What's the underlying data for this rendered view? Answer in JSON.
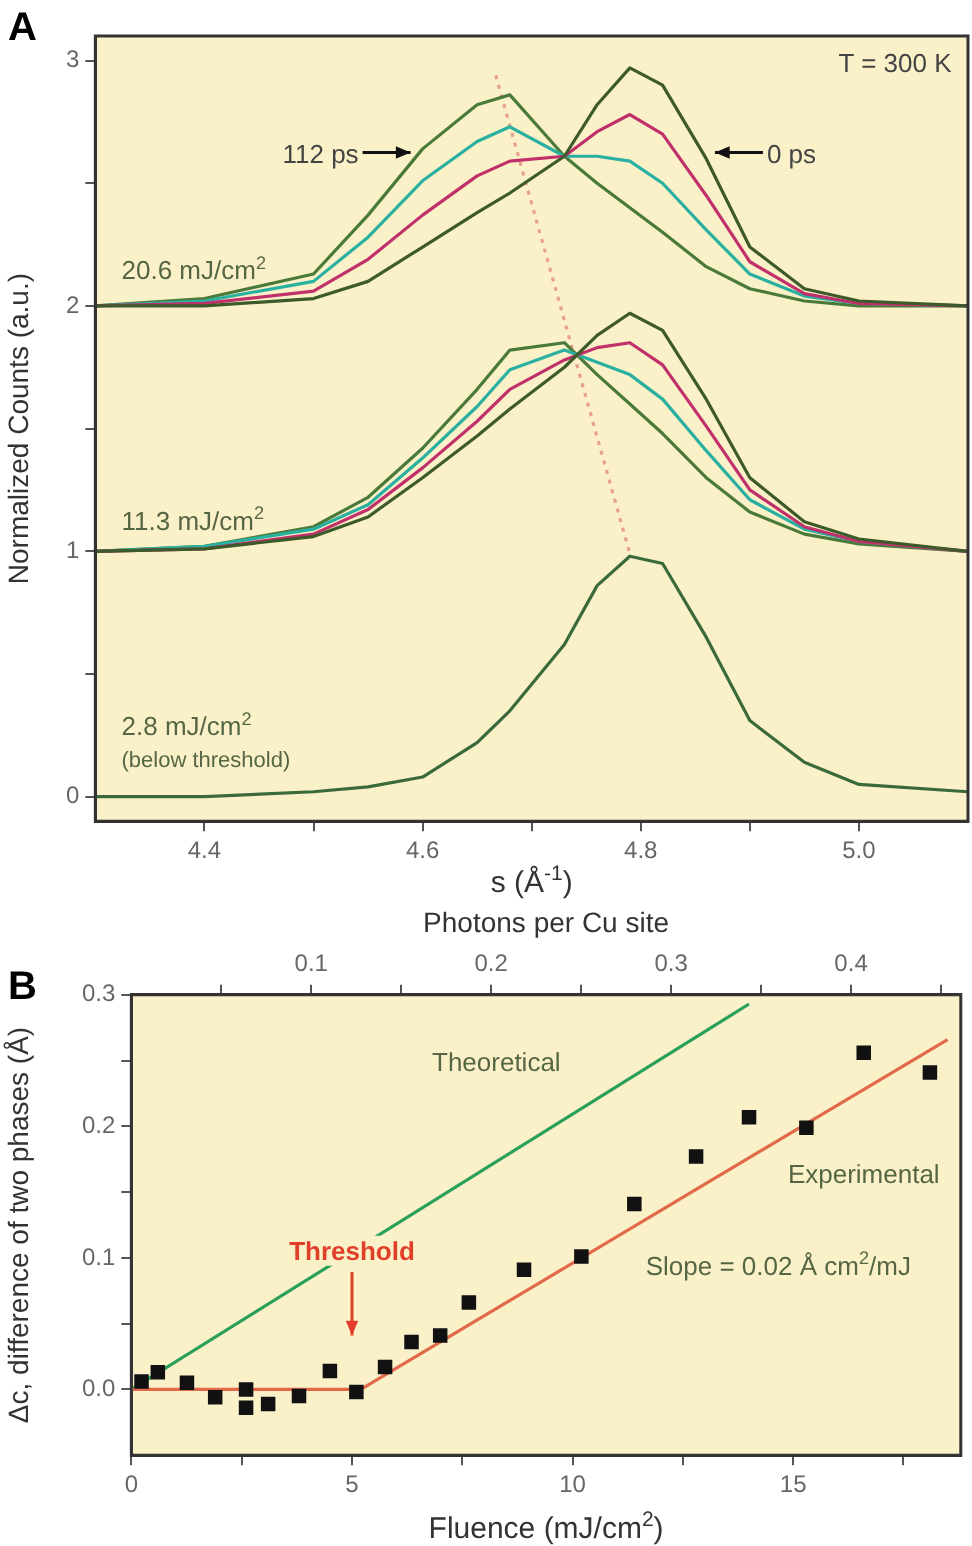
{
  "chart_data": [
    {
      "type": "line",
      "xlabel": "s (Å$^{-1}$)",
      "ylabel": "Normalized Counts (a.u.)",
      "xlim": [
        4.3,
        5.1
      ],
      "ylim": [
        -0.1,
        3.1
      ],
      "xticks": [
        4.4,
        {
          "value": 4.5,
          "label": null
        },
        4.6,
        {
          "value": 4.7,
          "label": null
        },
        4.8,
        {
          "value": 4.9,
          "label": null
        },
        {
          "value": 5,
          "label": "5.0"
        }
      ],
      "yticks": [
        0,
        {
          "value": 0.5,
          "label": null
        },
        1,
        {
          "value": 1.5,
          "label": null
        },
        2,
        {
          "value": 2.5,
          "label": null
        },
        3
      ],
      "x": [
        4.3,
        4.4,
        4.5,
        4.55,
        4.6,
        4.65,
        4.68,
        4.73,
        4.76,
        4.79,
        4.82,
        4.86,
        4.9,
        4.95,
        5.0,
        5.1
      ],
      "series": [
        {
          "color": "#3d5a2a",
          "values": [
            2.0,
            2.0,
            2.03,
            2.1,
            2.24,
            2.38,
            2.46,
            2.61,
            2.82,
            2.97,
            2.9,
            2.6,
            2.24,
            2.07,
            2.02,
            2.0
          ]
        },
        {
          "color": "#c0306a",
          "values": [
            2.0,
            2.01,
            2.06,
            2.19,
            2.37,
            2.53,
            2.59,
            2.61,
            2.71,
            2.78,
            2.7,
            2.45,
            2.18,
            2.05,
            2.01,
            2.0
          ]
        },
        {
          "color": "#2ab0a0",
          "values": [
            2.0,
            2.02,
            2.1,
            2.28,
            2.51,
            2.67,
            2.73,
            2.61,
            2.61,
            2.59,
            2.5,
            2.31,
            2.13,
            2.04,
            2.01,
            2.0
          ]
        },
        {
          "color": "#4a7a3a",
          "values": [
            2.0,
            2.03,
            2.13,
            2.37,
            2.64,
            2.82,
            2.86,
            2.61,
            2.5,
            2.4,
            2.3,
            2.16,
            2.07,
            2.02,
            2.0,
            2.0
          ]
        },
        {
          "color": "#3d5a2a",
          "values": [
            1.0,
            1.01,
            1.06,
            1.14,
            1.3,
            1.47,
            1.58,
            1.75,
            1.88,
            1.97,
            1.9,
            1.62,
            1.3,
            1.12,
            1.05,
            1.0
          ]
        },
        {
          "color": "#c0306a",
          "values": [
            1.0,
            1.01,
            1.07,
            1.17,
            1.34,
            1.53,
            1.66,
            1.78,
            1.83,
            1.85,
            1.76,
            1.51,
            1.25,
            1.1,
            1.04,
            1.0
          ]
        },
        {
          "color": "#2ab0a0",
          "values": [
            1.0,
            1.02,
            1.09,
            1.19,
            1.38,
            1.59,
            1.74,
            1.82,
            1.77,
            1.72,
            1.62,
            1.41,
            1.21,
            1.09,
            1.04,
            1.0
          ]
        },
        {
          "color": "#4a7a3a",
          "values": [
            1.0,
            1.02,
            1.1,
            1.22,
            1.42,
            1.66,
            1.82,
            1.85,
            1.72,
            1.6,
            1.48,
            1.3,
            1.16,
            1.07,
            1.03,
            1.0
          ]
        },
        {
          "color": "#3a6a3a",
          "values": [
            0.0,
            0.0,
            0.02,
            0.04,
            0.08,
            0.22,
            0.35,
            0.62,
            0.86,
            0.98,
            0.95,
            0.65,
            0.31,
            0.14,
            0.05,
            0.02
          ]
        },
        {
          "color": "#e8a090",
          "line_style": "dotted",
          "x": [
            4.667,
            4.79
          ],
          "values": [
            2.94,
            0.99
          ]
        }
      ],
      "annotations": [
        "A",
        "T = 300 K",
        {
          "text": "112 ps",
          "x": 4.589,
          "y": 2.625
        },
        {
          "text": "0 ps",
          "x": 4.868,
          "y": 2.625
        },
        "20.6 mJ/cm$^{2}$",
        "11.3 mJ/cm$^{2}$",
        "2.8 mJ/cm$^{2}$",
        "(below threshold)"
      ]
    },
    {
      "type": "scatter",
      "xlabel": "Fluence (mJ/cm$^{2}$)",
      "ylabel": "Δc, difference of two phases (Å)",
      "x2label": "Photons per Cu site",
      "xlim": [
        0,
        18.8
      ],
      "ylim": [
        -0.05,
        0.3
      ],
      "x2lim": [
        0,
        0.461
      ],
      "xticks": [
        0,
        {
          "value": 2.5,
          "label": null
        },
        5,
        {
          "value": 7.5,
          "label": null
        },
        10,
        {
          "value": 12.5,
          "label": null
        },
        15,
        {
          "value": 17.5,
          "label": null
        }
      ],
      "yticks": [
        {
          "value": 0,
          "label": "0.0"
        },
        {
          "value": 0.05,
          "label": null
        },
        0.1,
        {
          "value": 0.15,
          "label": null
        },
        0.2,
        {
          "value": 0.25,
          "label": null
        },
        0.3
      ],
      "x2ticks": [
        {
          "value": 0.05,
          "label": null
        },
        0.1,
        {
          "value": 0.15,
          "label": null
        },
        0.2,
        {
          "value": 0.25,
          "label": null
        },
        0.3,
        {
          "value": 0.35,
          "label": null
        },
        0.4,
        {
          "value": 0.45,
          "label": null
        }
      ],
      "series": [
        {
          "marker": "square",
          "color": "#111111",
          "x": [
            0.23,
            0.6,
            1.26,
            1.9,
            2.6,
            2.6,
            3.1,
            3.8,
            4.5,
            5.1,
            5.75,
            6.35,
            7.0,
            7.65,
            8.9,
            10.2,
            11.4,
            12.8,
            14.0,
            15.3,
            16.6,
            18.1
          ],
          "values": [
            0.006,
            0.013,
            0.005,
            -0.006,
            0.0,
            -0.014,
            -0.011,
            -0.005,
            0.014,
            -0.002,
            0.017,
            0.036,
            0.041,
            0.066,
            0.091,
            0.101,
            0.141,
            0.177,
            0.207,
            0.199,
            0.256,
            0.241
          ]
        },
        {
          "type": "line",
          "color": "#e06a4a",
          "x": [
            0,
            5.2,
            18.5
          ],
          "values": [
            0,
            0,
            0.266
          ]
        },
        {
          "type": "line",
          "color": "#2aa05a",
          "x": [
            0,
            14
          ],
          "values": [
            0,
            0.293
          ]
        }
      ],
      "annotations": [
        "B",
        "Theoretical",
        "Experimental",
        "Slope = 0.02 Å cm$^{2}$/mJ",
        "Threshold"
      ]
    }
  ]
}
